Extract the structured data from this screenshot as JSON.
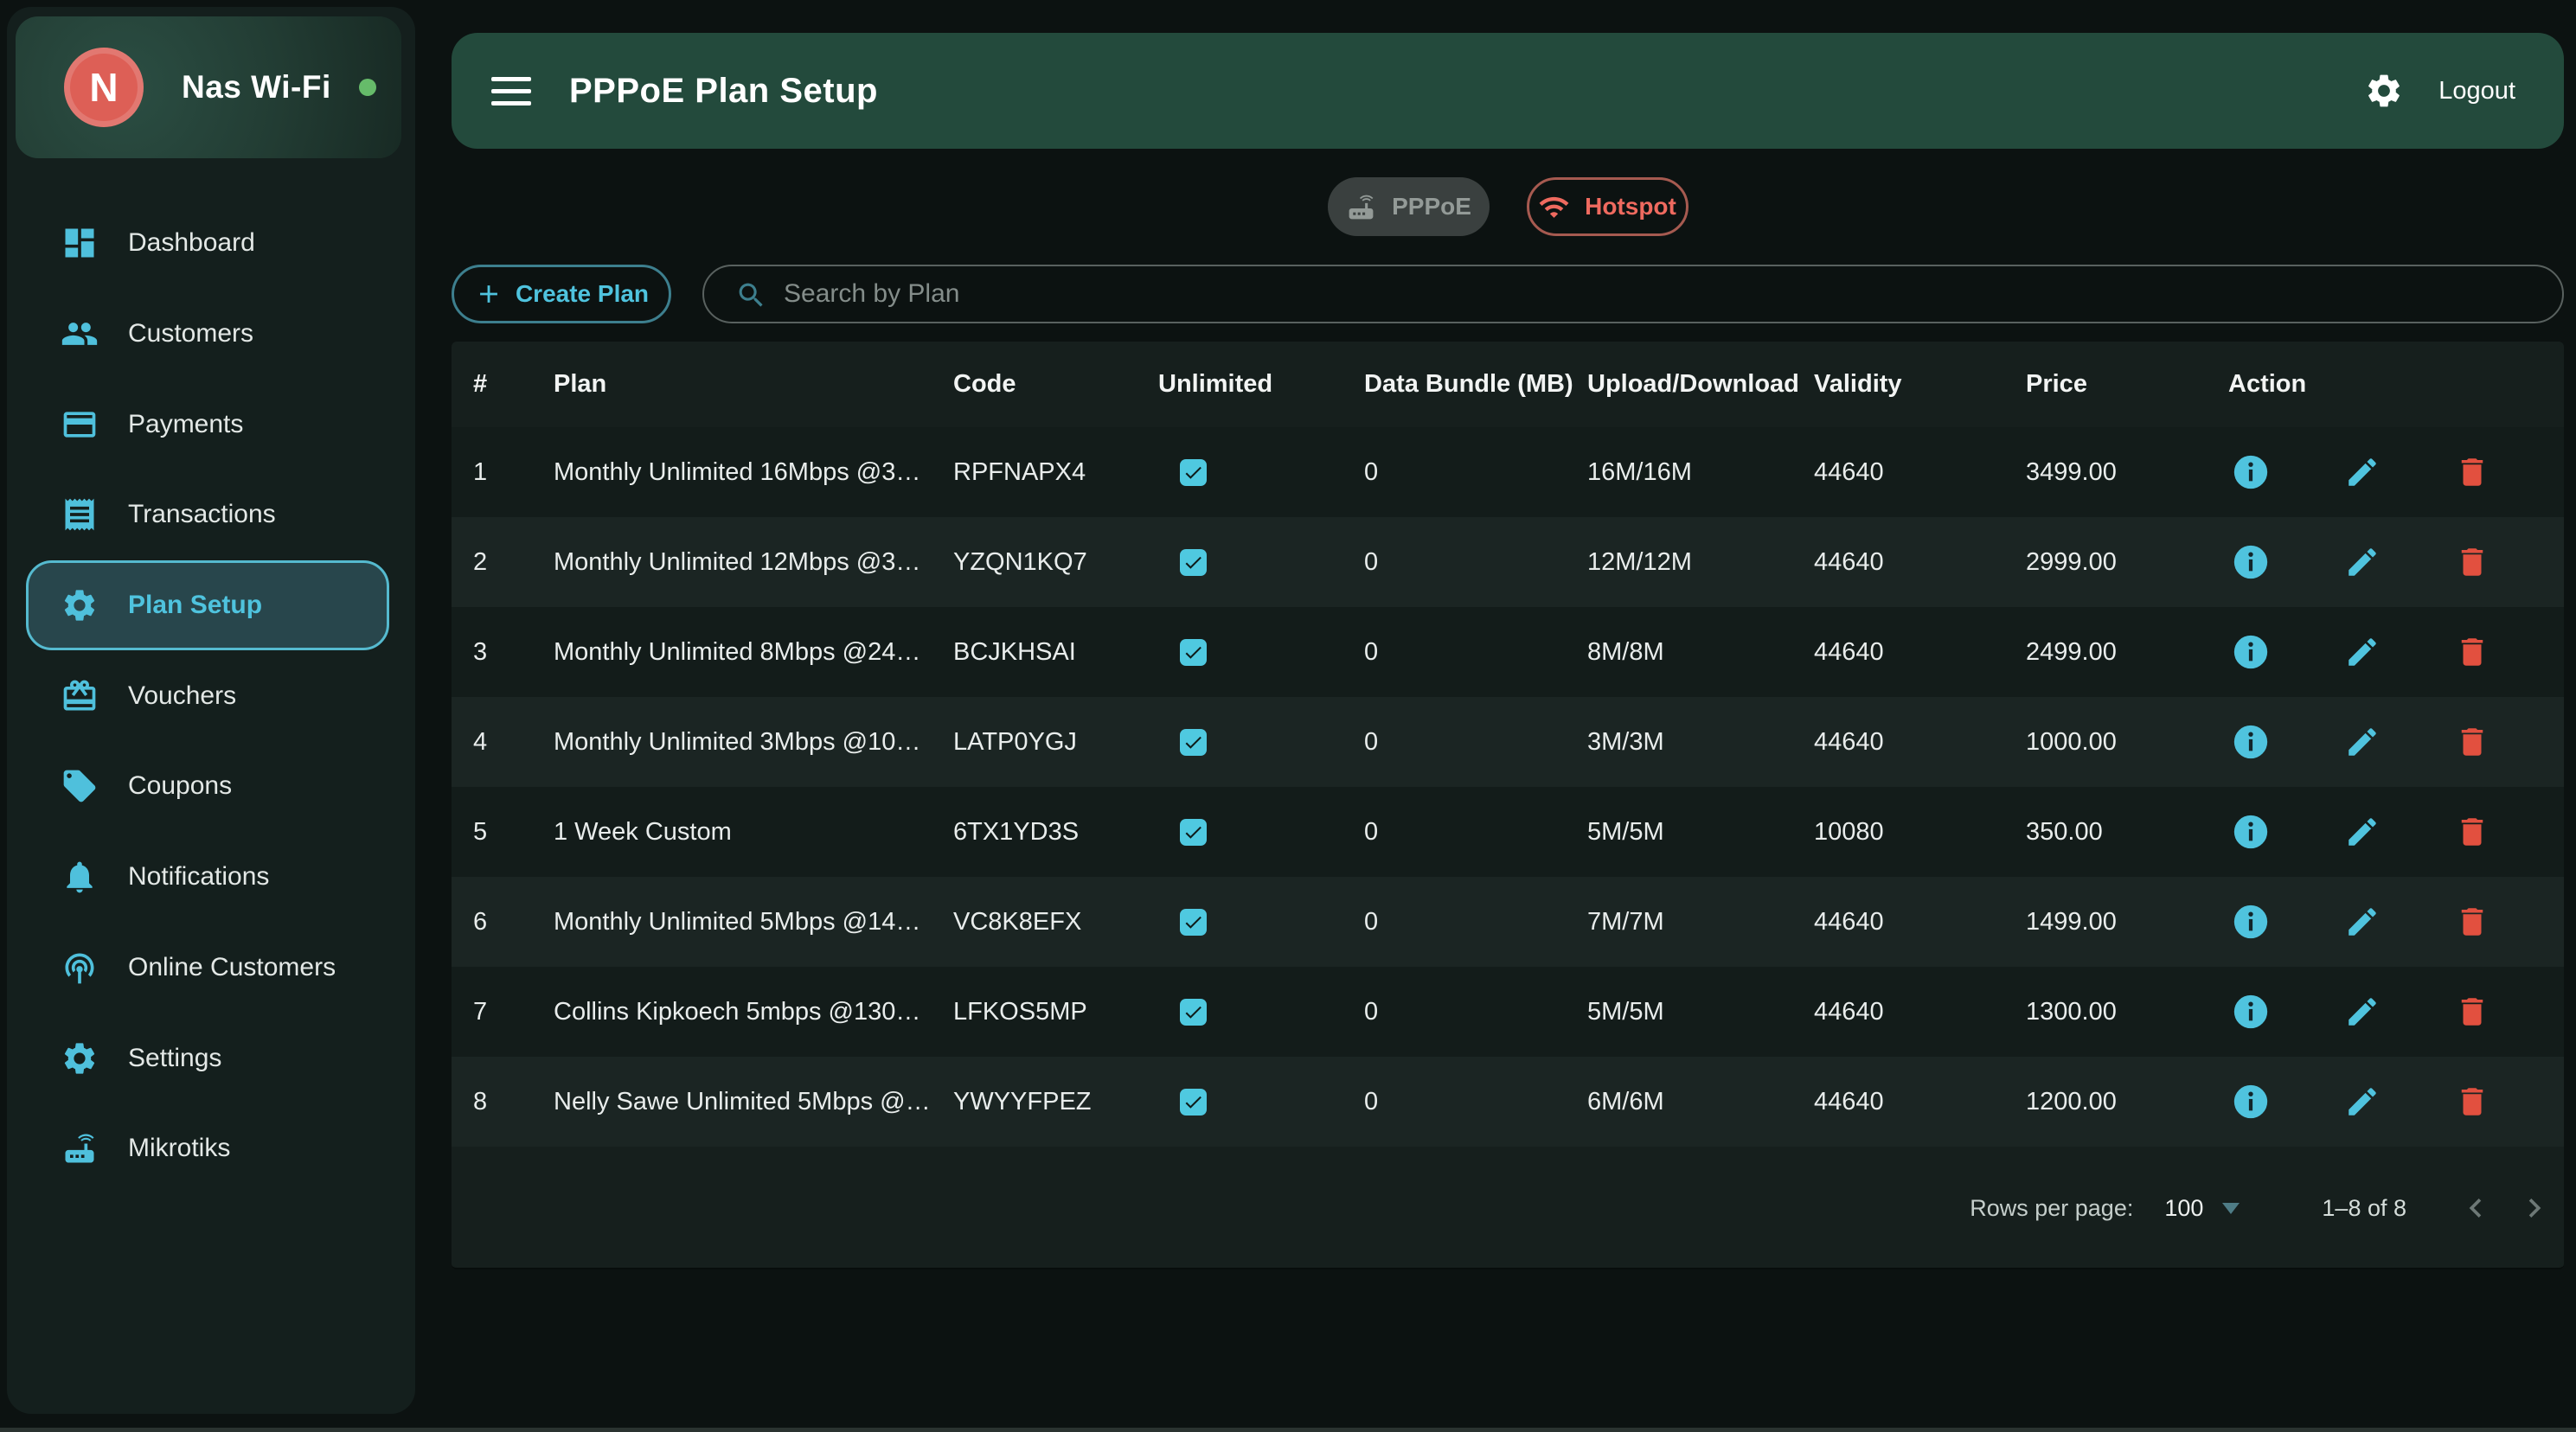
{
  "colors": {
    "accent_cyan": "#4fc3de",
    "header_green": "#234a3c",
    "brand_red": "#dd5f56",
    "hotspot_red": "#ef6a5f",
    "delete_red": "#e2503f",
    "online_green": "#66bb6a"
  },
  "app": {
    "brand": "Nas Wi-Fi",
    "brand_initial": "N"
  },
  "sidebar": {
    "active_index": 4,
    "items": [
      {
        "label": "Dashboard",
        "icon": "dashboard"
      },
      {
        "label": "Customers",
        "icon": "people"
      },
      {
        "label": "Payments",
        "icon": "credit-card"
      },
      {
        "label": "Transactions",
        "icon": "receipt"
      },
      {
        "label": "Plan Setup",
        "icon": "gear"
      },
      {
        "label": "Vouchers",
        "icon": "voucher"
      },
      {
        "label": "Coupons",
        "icon": "tag"
      },
      {
        "label": "Notifications",
        "icon": "bell"
      },
      {
        "label": "Online Customers",
        "icon": "broadcast"
      },
      {
        "label": "Settings",
        "icon": "gear"
      },
      {
        "label": "Mikrotiks",
        "icon": "router"
      }
    ]
  },
  "header": {
    "title": "PPPoE Plan Setup",
    "logout_label": "Logout"
  },
  "toggles": {
    "pppoe_label": "PPPoE",
    "hotspot_label": "Hotspot"
  },
  "toolbar": {
    "create_label": "Create Plan",
    "search_placeholder": "Search by Plan"
  },
  "table": {
    "columns": [
      "#",
      "Plan",
      "Code",
      "Unlimited",
      "Data Bundle (MB)",
      "Upload/Download",
      "Validity",
      "Price",
      "Action"
    ],
    "rows": [
      {
        "num": "1",
        "plan": "Monthly Unlimited 16Mbps @3…",
        "code": "RPFNAPX4",
        "unlimited": true,
        "bundle": "0",
        "upload_download": "16M/16M",
        "validity": "44640",
        "price": "3499.00"
      },
      {
        "num": "2",
        "plan": "Monthly Unlimited 12Mbps @3…",
        "code": "YZQN1KQ7",
        "unlimited": true,
        "bundle": "0",
        "upload_download": "12M/12M",
        "validity": "44640",
        "price": "2999.00"
      },
      {
        "num": "3",
        "plan": "Monthly Unlimited 8Mbps @24…",
        "code": "BCJKHSAI",
        "unlimited": true,
        "bundle": "0",
        "upload_download": "8M/8M",
        "validity": "44640",
        "price": "2499.00"
      },
      {
        "num": "4",
        "plan": "Monthly Unlimited 3Mbps @10…",
        "code": "LATP0YGJ",
        "unlimited": true,
        "bundle": "0",
        "upload_download": "3M/3M",
        "validity": "44640",
        "price": "1000.00"
      },
      {
        "num": "5",
        "plan": "1 Week Custom",
        "code": "6TX1YD3S",
        "unlimited": true,
        "bundle": "0",
        "upload_download": "5M/5M",
        "validity": "10080",
        "price": "350.00"
      },
      {
        "num": "6",
        "plan": "Monthly Unlimited 5Mbps @14…",
        "code": "VC8K8EFX",
        "unlimited": true,
        "bundle": "0",
        "upload_download": "7M/7M",
        "validity": "44640",
        "price": "1499.00"
      },
      {
        "num": "7",
        "plan": "Collins Kipkoech 5mbps @130…",
        "code": "LFKOS5MP",
        "unlimited": true,
        "bundle": "0",
        "upload_download": "5M/5M",
        "validity": "44640",
        "price": "1300.00"
      },
      {
        "num": "8",
        "plan": "Nelly Sawe Unlimited 5Mbps @…",
        "code": "YWYYFPEZ",
        "unlimited": true,
        "bundle": "0",
        "upload_download": "6M/6M",
        "validity": "44640",
        "price": "1200.00"
      }
    ]
  },
  "footer": {
    "rows_per_page_label": "Rows per page:",
    "rows_per_page_value": "100",
    "range_label": "1–8 of 8"
  }
}
